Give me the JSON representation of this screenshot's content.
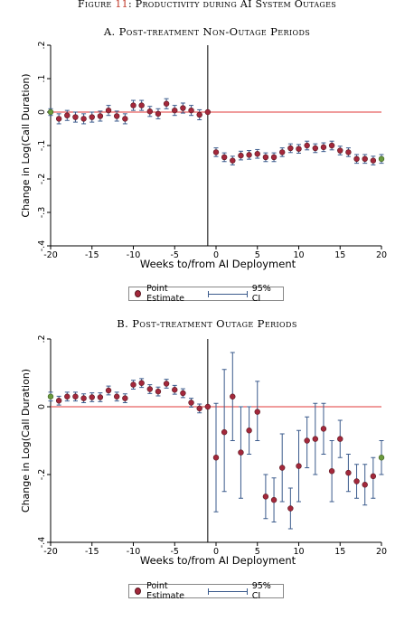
{
  "figure": {
    "title_prefix": "Figure ",
    "title_ref": "11",
    "title_suffix": ": Productivity during AI System Outages"
  },
  "colors": {
    "point_fill": "#a3283b",
    "point_edge": "#5a1720",
    "baseline_fill": "#6b9a3e",
    "ci_line": "#3b5b8c",
    "zero_line": "#e03a3a",
    "vertical_line": "#000000"
  },
  "legend": {
    "point_label": "Point Estimate",
    "ci_label": "95% CI"
  },
  "chart_data": [
    {
      "type": "scatter",
      "title": "A. Post-treatment Non-Outage Periods",
      "xlabel": "Weeks to/from AI Deployment",
      "ylabel": "Change in Log(Call Duration)",
      "xlim": [
        -20,
        20
      ],
      "ylim": [
        -0.4,
        0.2
      ],
      "xticks": [
        "-20",
        "-15",
        "-10",
        "-5",
        "0",
        "5",
        "10",
        "15",
        "20"
      ],
      "xtick_values": [
        -20,
        -15,
        -10,
        -5,
        0,
        5,
        10,
        15,
        20
      ],
      "yticks": [
        "-.4",
        "-.3",
        "-.2",
        "-.1",
        "0",
        ".1",
        ".2"
      ],
      "ytick_values": [
        -0.4,
        -0.3,
        -0.2,
        -0.1,
        0,
        0.1,
        0.2
      ],
      "vline_x": -1,
      "baseline_x": [
        -20,
        20
      ],
      "series": {
        "x": [
          -20,
          -19,
          -18,
          -17,
          -16,
          -15,
          -14,
          -13,
          -12,
          -11,
          -10,
          -9,
          -8,
          -7,
          -6,
          -5,
          -4,
          -3,
          -2,
          -1,
          0,
          1,
          2,
          3,
          4,
          5,
          6,
          7,
          8,
          9,
          10,
          11,
          12,
          13,
          14,
          15,
          16,
          17,
          18,
          19,
          20
        ],
        "y": [
          0,
          -0.02,
          -0.01,
          -0.015,
          -0.02,
          -0.015,
          -0.012,
          0.005,
          -0.012,
          -0.02,
          0.02,
          0.02,
          0.002,
          -0.005,
          0.025,
          0.005,
          0.012,
          0.005,
          -0.008,
          0,
          -0.12,
          -0.135,
          -0.145,
          -0.13,
          -0.128,
          -0.125,
          -0.135,
          -0.135,
          -0.12,
          -0.108,
          -0.11,
          -0.1,
          -0.108,
          -0.105,
          -0.1,
          -0.115,
          -0.12,
          -0.14,
          -0.14,
          -0.145,
          -0.14
        ],
        "lo": [
          -0.01,
          -0.035,
          -0.025,
          -0.03,
          -0.035,
          -0.03,
          -0.027,
          -0.01,
          -0.027,
          -0.035,
          0.005,
          0.005,
          -0.013,
          -0.02,
          0.01,
          -0.01,
          -0.003,
          -0.01,
          -0.023,
          0,
          -0.133,
          -0.148,
          -0.158,
          -0.143,
          -0.141,
          -0.138,
          -0.148,
          -0.148,
          -0.133,
          -0.121,
          -0.123,
          -0.113,
          -0.121,
          -0.118,
          -0.113,
          -0.128,
          -0.133,
          -0.153,
          -0.153,
          -0.158,
          -0.153
        ],
        "hi": [
          0.01,
          -0.005,
          0.005,
          0,
          -0.005,
          0,
          0.003,
          0.02,
          0.003,
          -0.005,
          0.035,
          0.035,
          0.017,
          0.01,
          0.04,
          0.02,
          0.027,
          0.02,
          0.007,
          0,
          -0.107,
          -0.122,
          -0.132,
          -0.117,
          -0.115,
          -0.112,
          -0.122,
          -0.122,
          -0.107,
          -0.095,
          -0.097,
          -0.087,
          -0.095,
          -0.092,
          -0.087,
          -0.102,
          -0.107,
          -0.127,
          -0.127,
          -0.132,
          -0.127
        ]
      }
    },
    {
      "type": "scatter",
      "title": "B. Post-treatment Outage Periods",
      "xlabel": "Weeks to/from AI Deployment",
      "ylabel": "Change in Log(Call Duration)",
      "xlim": [
        -20,
        20
      ],
      "ylim": [
        -0.4,
        0.2
      ],
      "xticks": [
        "-20",
        "-15",
        "-10",
        "-5",
        "0",
        "5",
        "10",
        "15",
        "20"
      ],
      "xtick_values": [
        -20,
        -15,
        -10,
        -5,
        0,
        5,
        10,
        15,
        20
      ],
      "yticks": [
        "-.4",
        "-.2",
        "0",
        ".2"
      ],
      "ytick_values": [
        -0.4,
        -0.2,
        0,
        0.2
      ],
      "vline_x": -1,
      "baseline_x": [
        -20,
        20
      ],
      "series": {
        "x": [
          -20,
          -19,
          -18,
          -17,
          -16,
          -15,
          -14,
          -13,
          -12,
          -11,
          -10,
          -9,
          -8,
          -7,
          -6,
          -5,
          -4,
          -3,
          -2,
          -1,
          0,
          1,
          2,
          3,
          4,
          5,
          6,
          7,
          8,
          9,
          10,
          11,
          12,
          13,
          14,
          15,
          16,
          17,
          18,
          19,
          20
        ],
        "y": [
          0.03,
          0.018,
          0.03,
          0.03,
          0.025,
          0.028,
          0.028,
          0.048,
          0.03,
          0.025,
          0.065,
          0.07,
          0.052,
          0.045,
          0.068,
          0.05,
          0.04,
          0.012,
          -0.005,
          0,
          -0.15,
          -0.075,
          0.03,
          -0.135,
          -0.07,
          -0.015,
          -0.265,
          -0.275,
          -0.18,
          -0.3,
          -0.175,
          -0.1,
          -0.095,
          -0.065,
          -0.19,
          -0.095,
          -0.195,
          -0.22,
          -0.23,
          -0.205,
          -0.15
        ],
        "lo": [
          0.017,
          0.005,
          0.017,
          0.017,
          0.012,
          0.015,
          0.015,
          0.035,
          0.017,
          0.012,
          0.052,
          0.057,
          0.039,
          0.032,
          0.055,
          0.037,
          0.027,
          -0.001,
          -0.018,
          0,
          -0.31,
          -0.25,
          -0.1,
          -0.27,
          -0.14,
          -0.1,
          -0.33,
          -0.34,
          -0.28,
          -0.36,
          -0.28,
          -0.18,
          -0.2,
          -0.14,
          -0.28,
          -0.15,
          -0.25,
          -0.27,
          -0.29,
          -0.27,
          -0.2
        ],
        "hi": [
          0.043,
          0.031,
          0.043,
          0.043,
          0.038,
          0.041,
          0.041,
          0.061,
          0.043,
          0.038,
          0.078,
          0.083,
          0.065,
          0.058,
          0.081,
          0.063,
          0.053,
          0.025,
          0.008,
          0,
          0.01,
          0.11,
          0.16,
          0,
          0,
          0.075,
          -0.2,
          -0.21,
          -0.08,
          -0.24,
          -0.07,
          -0.03,
          0.01,
          0.01,
          -0.1,
          -0.04,
          -0.14,
          -0.17,
          -0.17,
          -0.15,
          -0.1
        ]
      }
    }
  ]
}
